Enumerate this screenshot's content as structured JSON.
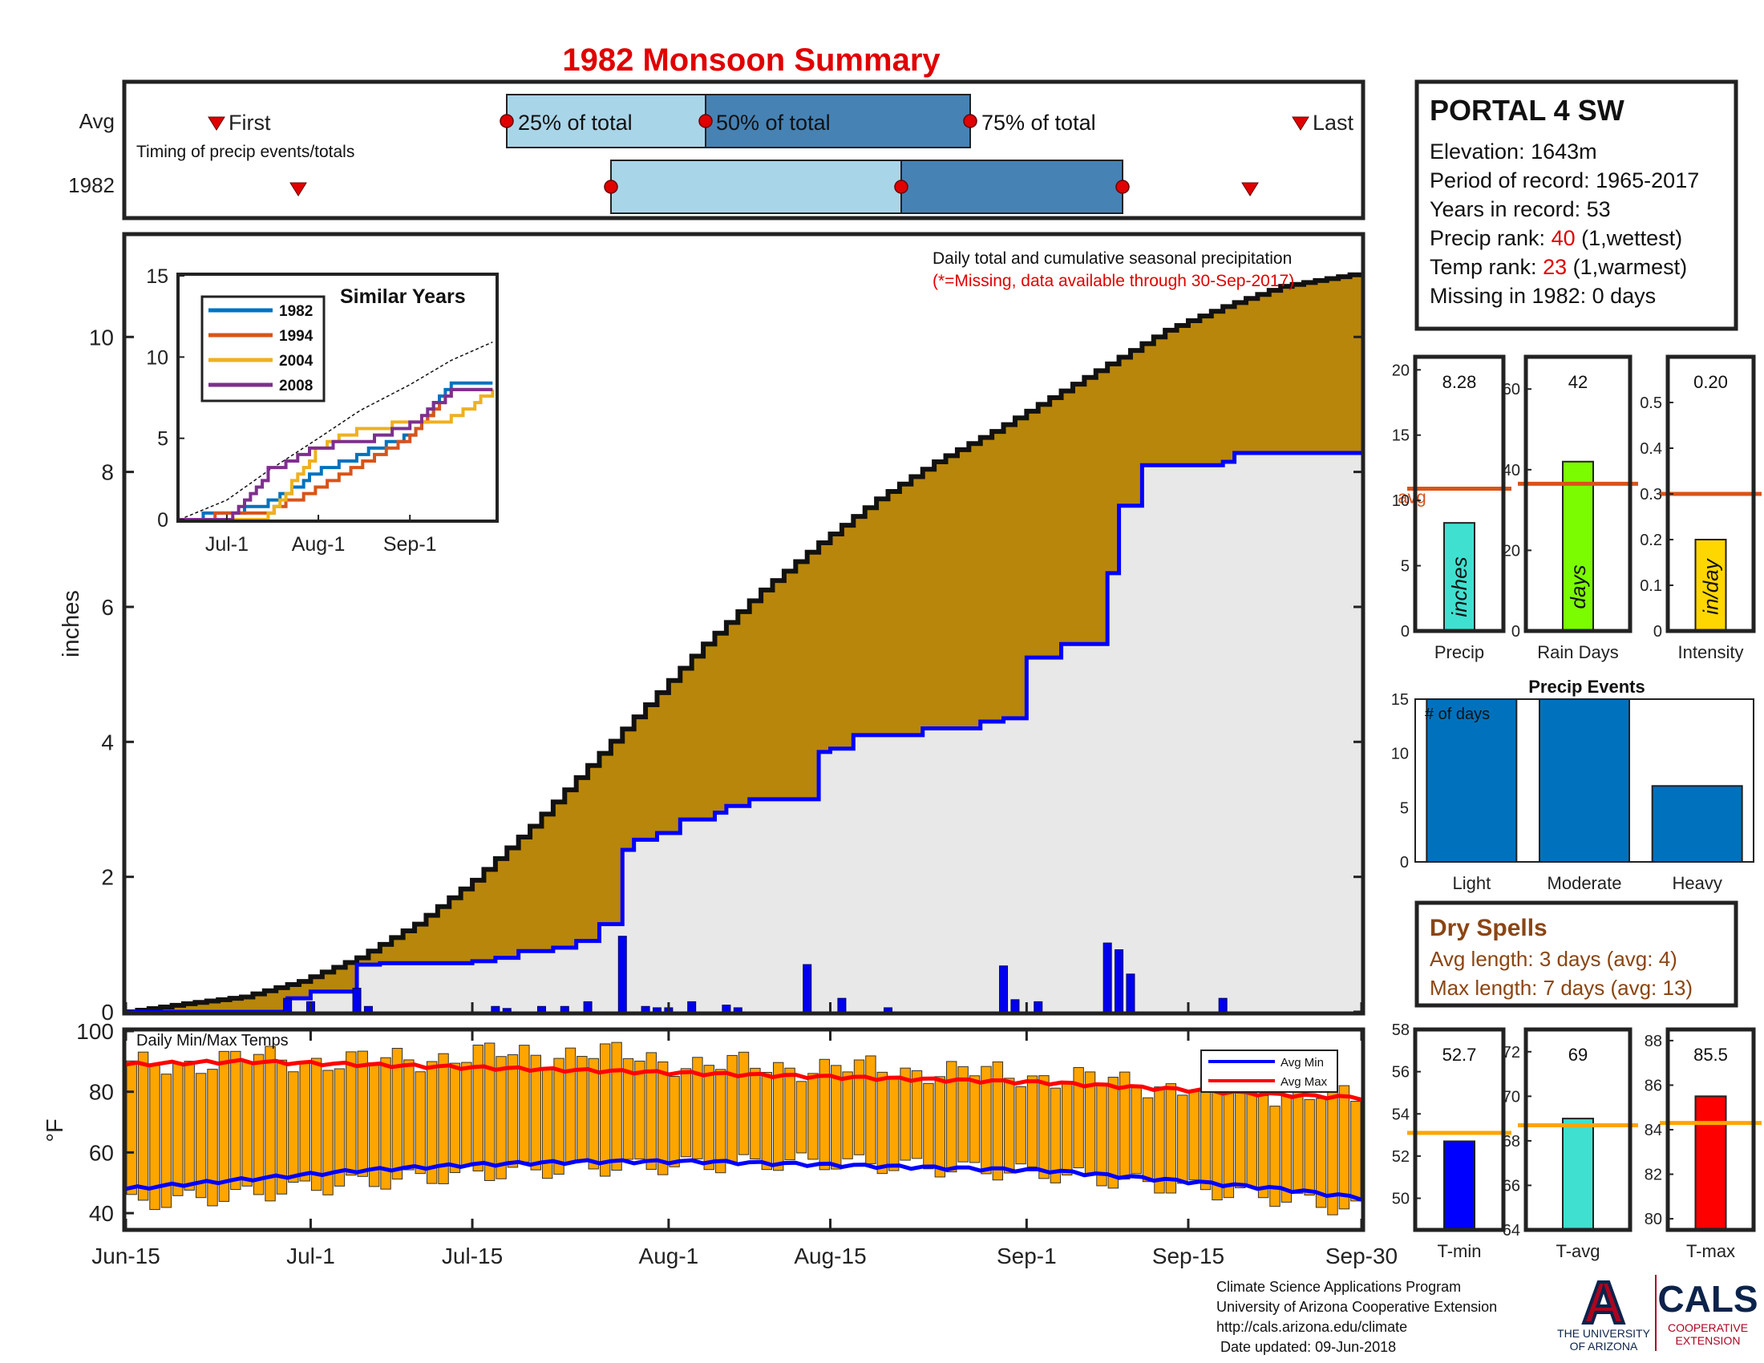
{
  "title": "1982 Monsoon Summary",
  "timing": {
    "row_labels": [
      "Avg",
      "1982"
    ],
    "caption": "Timing of precip events/totals",
    "first_label": "First",
    "last_label": "Last",
    "p25_label": "25% of total",
    "p50_label": "50% of total",
    "p75_label": "75% of total",
    "avg": {
      "first": "Jun-21",
      "p25": "Jul-17",
      "p50": "Aug-01",
      "p75": "Aug-23",
      "last": "Sep-28"
    },
    "year": {
      "first": "Jun-30",
      "p25": "Jul-28",
      "p50": "Aug-19",
      "p75": "Sep-07",
      "last": "Sep-21"
    },
    "colors": {
      "light": "#a9d5e8",
      "dark": "#4682b4",
      "marker": "#e00000"
    }
  },
  "station": {
    "name": "PORTAL 4 SW",
    "elevation": "Elevation: 1643m",
    "period": "Period of record: 1965-2017",
    "years": "Years in record: 53",
    "precip_rank_prefix": "Precip rank: ",
    "precip_rank_value": "40",
    "precip_rank_suffix": " (1,wettest)",
    "temp_rank_prefix": "Temp rank: ",
    "temp_rank_value": "23",
    "temp_rank_suffix": " (1,warmest)",
    "missing": "Missing in 1982: 0 days"
  },
  "main_chart": {
    "annotation": "Daily total and cumulative seasonal precipitation",
    "missing_note": "(*=Missing, data available through 30-Sep-2017)",
    "ylabel": "inches",
    "y_ticks": [
      "0",
      "2",
      "4",
      "6",
      "8",
      "10"
    ],
    "x_ticks": [
      "Jun-15",
      "Jul-1",
      "Jul-15",
      "Aug-1",
      "Aug-15",
      "Sep-1",
      "Sep-15",
      "Sep-30"
    ],
    "colors": {
      "avg_fill": "#b8860b",
      "year_fill": "#e8e8e8",
      "year_line": "#0000ff",
      "bars": "#0000ee"
    }
  },
  "inset": {
    "title": "Similar Years",
    "x_ticks": [
      "Jul-1",
      "Aug-1",
      "Sep-1"
    ],
    "y_ticks": [
      "0",
      "5",
      "10",
      "15"
    ],
    "legend": [
      "1982",
      "1994",
      "2004",
      "2008"
    ],
    "colors": [
      "#0072bd",
      "#d95319",
      "#edb120",
      "#7e2f8e"
    ]
  },
  "temp_chart": {
    "label": "Daily Min/Max Temps",
    "ylabel": "°F",
    "y_ticks": [
      "40",
      "60",
      "80",
      "100"
    ],
    "legend_min": "Avg Min",
    "legend_max": "Avg Max",
    "colors": {
      "bars": "#ffa500",
      "avg_min": "#0000ff",
      "avg_max": "#ff0000"
    }
  },
  "precip_panels": [
    {
      "label": "Precip",
      "value": "8.28",
      "unit": "inches",
      "y_ticks": [
        "0",
        "5",
        "10",
        "15",
        "20"
      ],
      "avg_label": "avg",
      "color": "#40e0d0"
    },
    {
      "label": "Rain Days",
      "value": "42",
      "unit": "days",
      "y_ticks": [
        "0",
        "20",
        "40",
        "60"
      ],
      "color": "#7cfc00"
    },
    {
      "label": "Intensity",
      "value": "0.20",
      "unit": "in/day",
      "y_ticks": [
        "0",
        "0.1",
        "0.2",
        "0.3",
        "0.4",
        "0.5"
      ],
      "color": "#ffd700"
    }
  ],
  "precip_events": {
    "title": "Precip Events",
    "ylabel": "# of days",
    "categories": [
      "Light",
      "Moderate",
      "Heavy"
    ],
    "y_ticks": [
      "0",
      "5",
      "10",
      "15"
    ],
    "color": "#0072bd"
  },
  "dry_spells": {
    "title": "Dry Spells",
    "avg_line": "Avg length: 3 days (avg: 4)",
    "max_line": "Max length: 7 days (avg: 13)",
    "color": "#8b4513"
  },
  "temp_panels": [
    {
      "label": "T-min",
      "value": "52.7",
      "y_ticks": [
        "50",
        "52",
        "54",
        "56",
        "58"
      ],
      "color": "#0000ff"
    },
    {
      "label": "T-avg",
      "value": "69",
      "y_ticks": [
        "64",
        "66",
        "68",
        "70",
        "72"
      ],
      "color": "#40e0d0"
    },
    {
      "label": "T-max",
      "value": "85.5",
      "y_ticks": [
        "80",
        "82",
        "84",
        "86",
        "88"
      ],
      "color": "#ff0000"
    }
  ],
  "footer": {
    "lines": [
      "Climate Science Applications Program",
      "University of Arizona Cooperative Extension",
      "http://cals.arizona.edu/climate",
      " Date updated: 09-Jun-2018"
    ],
    "ua_line1": "THE UNIVERSITY",
    "ua_line2": "OF ARIZONA",
    "cals": "CALS",
    "cals_sub1": "COOPERATIVE",
    "cals_sub2": "EXTENSION",
    "logo_letter": "A"
  },
  "chart_data": [
    {
      "type": "area",
      "title": "Daily total and cumulative seasonal precipitation",
      "ylabel": "inches",
      "ylim": [
        0,
        11.5
      ],
      "x_range": [
        "Jun-15",
        "Sep-30"
      ],
      "series": [
        {
          "name": "",
          "kind": "average cumulative",
          "x": [
            "Jun-15",
            "Jun-20",
            "Jun-25",
            "Jun-30",
            "Jul-5",
            "Jul-10",
            "Jul-15",
            "Jul-20",
            "Jul-25",
            "Jul-30",
            "Aug-4",
            "Aug-9",
            "Aug-14",
            "Aug-19",
            "Aug-24",
            "Aug-29",
            "Sep-3",
            "Sep-8",
            "Sep-13",
            "Sep-18",
            "Sep-23",
            "Sep-30"
          ],
          "values": [
            0,
            0.12,
            0.22,
            0.45,
            0.8,
            1.3,
            1.95,
            2.75,
            3.65,
            4.55,
            5.45,
            6.25,
            6.95,
            7.6,
            8.15,
            8.6,
            9.1,
            9.6,
            10.1,
            10.45,
            10.75,
            10.95
          ]
        },
        {
          "name": "1982",
          "kind": "cumulative",
          "x": [
            "Jun-15",
            "Jun-29",
            "Jul-1",
            "Jul-5",
            "Jul-7",
            "Jul-15",
            "Jul-17",
            "Jul-19",
            "Jul-22",
            "Jul-24",
            "Jul-26",
            "Jul-28",
            "Jul-29",
            "Jul-31",
            "Aug-2",
            "Aug-5",
            "Aug-6",
            "Aug-8",
            "Aug-14",
            "Aug-15",
            "Aug-17",
            "Aug-23",
            "Aug-28",
            "Aug-30",
            "Sep-1",
            "Sep-4",
            "Sep-8",
            "Sep-9",
            "Sep-11",
            "Sep-18",
            "Sep-19",
            "Sep-30"
          ],
          "values": [
            0,
            0.2,
            0.3,
            0.7,
            0.72,
            0.75,
            0.8,
            0.9,
            0.95,
            1.05,
            1.3,
            2.4,
            2.55,
            2.65,
            2.85,
            2.95,
            3.05,
            3.15,
            3.85,
            3.9,
            4.1,
            4.2,
            4.3,
            4.35,
            5.25,
            5.45,
            6.5,
            7.5,
            8.1,
            8.15,
            8.28,
            8.28
          ]
        },
        {
          "name": "1982",
          "kind": "daily total",
          "type": "bar",
          "x": [
            "Jun-29",
            "Jul-1",
            "Jul-5",
            "Jul-6",
            "Jul-17",
            "Jul-18",
            "Jul-21",
            "Jul-23",
            "Jul-25",
            "Jul-28",
            "Jul-30",
            "Jul-31",
            "Aug-1",
            "Aug-3",
            "Aug-6",
            "Aug-7",
            "Aug-13",
            "Aug-16",
            "Aug-20",
            "Aug-30",
            "Aug-31",
            "Sep-2",
            "Sep-8",
            "Sep-9",
            "Sep-10",
            "Sep-18"
          ],
          "values": [
            0.2,
            0.15,
            0.35,
            0.08,
            0.08,
            0.05,
            0.08,
            0.08,
            0.15,
            1.12,
            0.08,
            0.06,
            0.06,
            0.15,
            0.1,
            0.06,
            0.7,
            0.2,
            0.06,
            0.68,
            0.18,
            0.15,
            1.02,
            0.92,
            0.56,
            0.2
          ]
        }
      ]
    },
    {
      "type": "line",
      "title": "Similar Years",
      "ylim": [
        0,
        15
      ],
      "x_range": [
        "Jun-15",
        "Sep-30"
      ],
      "series": [
        {
          "name": "",
          "kind": "average cumulative",
          "x": [
            "Jun-15",
            "Jul-1",
            "Jul-15",
            "Aug-1",
            "Aug-15",
            "Sep-1",
            "Sep-15",
            "Sep-30"
          ],
          "values": [
            0,
            1.2,
            3.0,
            5.0,
            6.7,
            8.3,
            9.8,
            11.0
          ]
        },
        {
          "name": "1982",
          "x": [
            "Jun-15",
            "Jul-1",
            "Jul-15",
            "Aug-1",
            "Aug-15",
            "Sep-1",
            "Sep-15",
            "Sep-30"
          ],
          "values": [
            0,
            0.4,
            1.0,
            3.0,
            4.0,
            5.3,
            8.3,
            8.4
          ]
        },
        {
          "name": "1994",
          "x": [
            "Jun-15",
            "Jul-1",
            "Jul-15",
            "Aug-1",
            "Aug-15",
            "Sep-1",
            "Sep-15",
            "Sep-30"
          ],
          "values": [
            0,
            0.3,
            0.5,
            2.0,
            3.4,
            5.0,
            8.0,
            8.1
          ]
        },
        {
          "name": "2004",
          "x": [
            "Jun-15",
            "Jul-1",
            "Jul-15",
            "Aug-1",
            "Aug-15",
            "Sep-1",
            "Sep-15",
            "Sep-30"
          ],
          "values": [
            0,
            0.1,
            0.2,
            4.5,
            5.5,
            6.0,
            6.2,
            8.0
          ]
        },
        {
          "name": "2008",
          "x": [
            "Jun-15",
            "Jul-1",
            "Jul-15",
            "Aug-1",
            "Aug-15",
            "Sep-1",
            "Sep-15",
            "Sep-30"
          ],
          "values": [
            0,
            0,
            3.0,
            4.5,
            4.8,
            5.8,
            8.0,
            8.2
          ]
        }
      ]
    },
    {
      "type": "bar",
      "title": "Daily Min/Max Temps",
      "ylabel": "°F",
      "ylim": [
        35,
        100
      ],
      "x": [
        "Jun-15",
        "Jun-25",
        "Jul-5",
        "Jul-15",
        "Jul-25",
        "Aug-4",
        "Aug-14",
        "Aug-24",
        "Sep-3",
        "Sep-13",
        "Sep-23",
        "Sep-30"
      ],
      "series": [
        {
          "name": "daily max",
          "values": [
            88,
            91,
            90,
            92,
            93,
            89,
            88,
            87,
            85,
            82,
            80,
            78
          ]
        },
        {
          "name": "daily min",
          "values": [
            43,
            46,
            50,
            53,
            55,
            56,
            57,
            55,
            53,
            49,
            45,
            41
          ]
        },
        {
          "name": "Avg Max",
          "values": [
            89,
            90,
            89,
            88,
            87,
            86,
            85,
            84,
            83,
            81,
            79,
            78
          ]
        },
        {
          "name": "Avg Min",
          "values": [
            48,
            51,
            54,
            56,
            57,
            57,
            56,
            55,
            54,
            51,
            48,
            45
          ]
        }
      ]
    },
    {
      "type": "bar",
      "categories": [
        "Precip"
      ],
      "values": [
        8.28
      ],
      "avg": 10.9,
      "ylim": [
        0,
        21
      ]
    },
    {
      "type": "bar",
      "categories": [
        "Rain Days"
      ],
      "values": [
        42
      ],
      "avg": 36.5,
      "ylim": [
        0,
        68
      ]
    },
    {
      "type": "bar",
      "categories": [
        "Intensity"
      ],
      "values": [
        0.2
      ],
      "avg": 0.3,
      "ylim": [
        0,
        0.6
      ]
    },
    {
      "type": "bar",
      "title": "Precip Events",
      "ylabel": "# of days",
      "categories": [
        "Light",
        "Moderate",
        "Heavy"
      ],
      "values": [
        15,
        15,
        7
      ],
      "ylim": [
        0,
        15
      ]
    },
    {
      "type": "bar",
      "categories": [
        "T-min"
      ],
      "values": [
        52.7
      ],
      "avg": 53.1,
      "ylim": [
        48.5,
        58
      ]
    },
    {
      "type": "bar",
      "categories": [
        "T-avg"
      ],
      "values": [
        69
      ],
      "avg": 68.7,
      "ylim": [
        64,
        73
      ]
    },
    {
      "type": "bar",
      "categories": [
        "T-max"
      ],
      "values": [
        85.5
      ],
      "avg": 84.3,
      "ylim": [
        79.5,
        88.5
      ]
    }
  ]
}
